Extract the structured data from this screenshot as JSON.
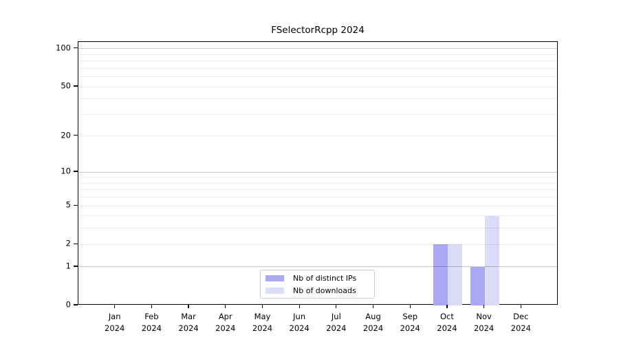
{
  "chart_data": {
    "type": "bar",
    "title": "FSelectorRcpp 2024",
    "x_categories": [
      {
        "month": "Jan",
        "year": "2024"
      },
      {
        "month": "Feb",
        "year": "2024"
      },
      {
        "month": "Mar",
        "year": "2024"
      },
      {
        "month": "Apr",
        "year": "2024"
      },
      {
        "month": "May",
        "year": "2024"
      },
      {
        "month": "Jun",
        "year": "2024"
      },
      {
        "month": "Jul",
        "year": "2024"
      },
      {
        "month": "Aug",
        "year": "2024"
      },
      {
        "month": "Sep",
        "year": "2024"
      },
      {
        "month": "Oct",
        "year": "2024"
      },
      {
        "month": "Nov",
        "year": "2024"
      },
      {
        "month": "Dec",
        "year": "2024"
      }
    ],
    "series": [
      {
        "name": "Nb of distinct IPs",
        "color": "#a9a9f4",
        "values": [
          0,
          0,
          0,
          0,
          0,
          0,
          0,
          0,
          0,
          2,
          1,
          0
        ]
      },
      {
        "name": "Nb of downloads",
        "color": "#dcdcf8",
        "values": [
          0,
          0,
          0,
          0,
          0,
          0,
          0,
          0,
          0,
          2,
          4,
          0
        ]
      }
    ],
    "y_scale": "log1p",
    "ylim": [
      0,
      113
    ],
    "y_ticks": [
      0,
      1,
      2,
      5,
      10,
      20,
      50,
      100
    ],
    "y_major_gridlines": [
      1,
      10,
      100
    ],
    "y_minor_gridlines": [
      2,
      3,
      4,
      5,
      6,
      7,
      8,
      9,
      20,
      30,
      40,
      50,
      60,
      70,
      80,
      90
    ],
    "grid": "horizontal",
    "legend_position": "bottom-center",
    "colors": {
      "axis": "#000000",
      "major_grid": "rgba(0,0,0,0.22)",
      "minor_grid": "rgba(0,0,0,0.07)",
      "legend_border": "#cccccc"
    }
  }
}
